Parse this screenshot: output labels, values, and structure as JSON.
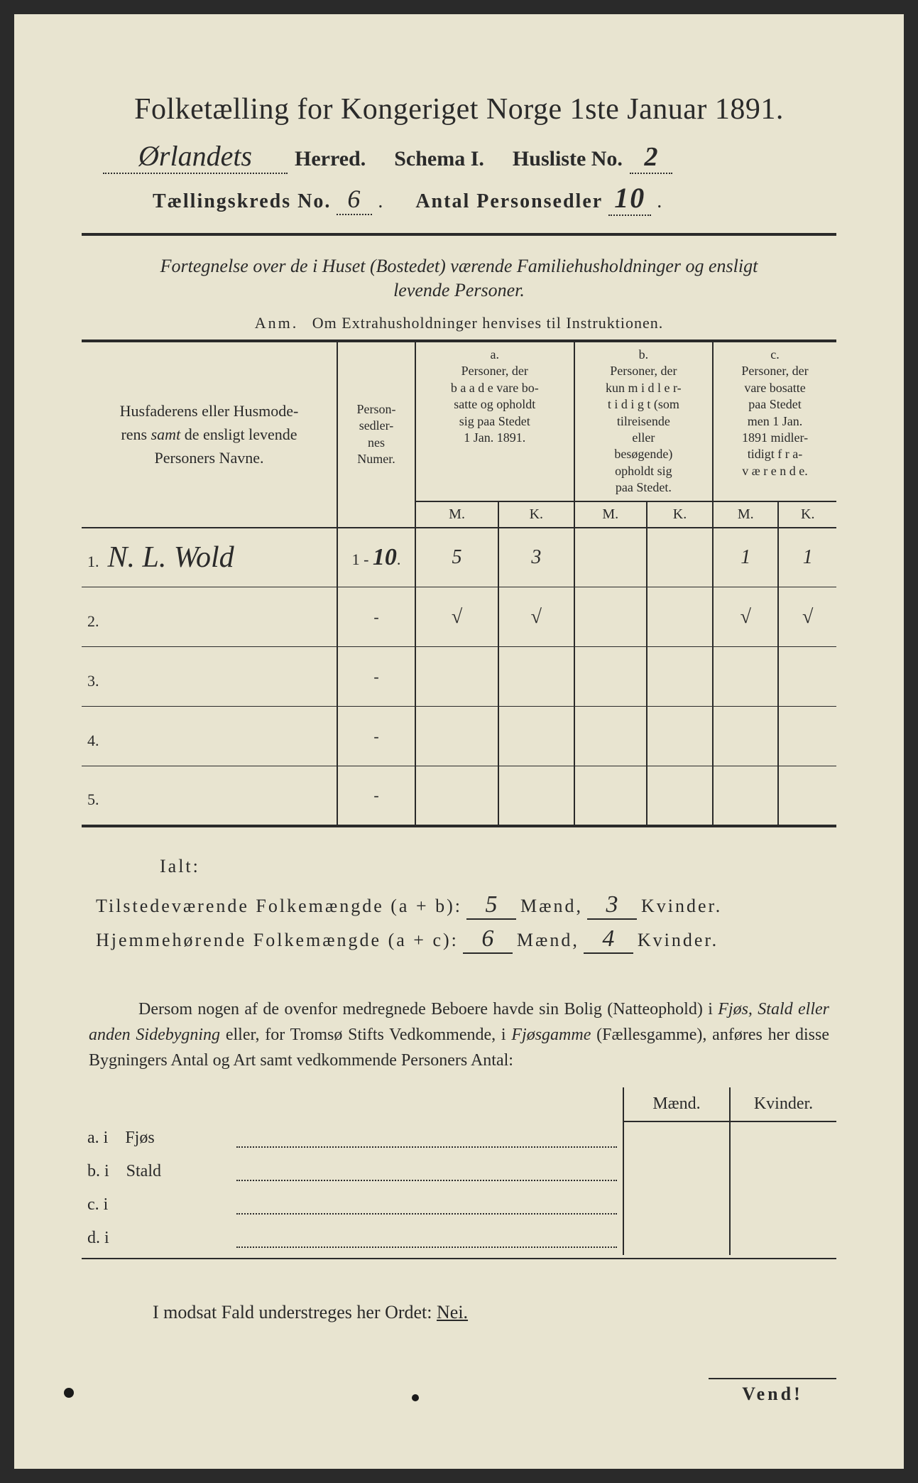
{
  "title": "Folketælling for Kongeriget Norge 1ste Januar 1891.",
  "header": {
    "herred_value": "Ørlandets",
    "herred_label": "Herred.",
    "schema_label": "Schema I.",
    "husliste_label": "Husliste No.",
    "husliste_value": "2",
    "kreds_label": "Tællingskreds No.",
    "kreds_value": "6",
    "personsedler_label": "Antal Personsedler",
    "personsedler_value": "10"
  },
  "subtitle1": "Fortegnelse over de i Huset (Bostedet) værende Familiehusholdninger og ensligt",
  "subtitle2": "levende Personer.",
  "anm_prefix": "Anm.",
  "anm_text": "Om Extrahusholdninger henvises til Instruktionen.",
  "table": {
    "col_name": "Husfaderens eller Husmoderens samt de ensligt levende Personers Navne.",
    "col_num": "Personsedlernes Numer.",
    "col_a_hdr": "a.",
    "col_a": "Personer, der baade vare bosatte og opholdt sig paa Stedet 1 Jan. 1891.",
    "col_b_hdr": "b.",
    "col_b": "Personer, der kun midlertidigt (som tilreisende eller besøgende) opholdt sig paa Stedet.",
    "col_c_hdr": "c.",
    "col_c": "Personer, der vare bosatte paa Stedet men 1 Jan. 1891 midlertidigt fraværende.",
    "M": "M.",
    "K": "K.",
    "rows": [
      {
        "n": "1.",
        "name": "N. L. Wold",
        "num": "1 - 10.",
        "aM": "5",
        "aK": "3",
        "bM": "",
        "bK": "",
        "cM": "1",
        "cK": "1"
      },
      {
        "n": "2.",
        "name": "",
        "num": "-",
        "aM": "√",
        "aK": "√",
        "bM": "",
        "bK": "",
        "cM": "√",
        "cK": "√"
      },
      {
        "n": "3.",
        "name": "",
        "num": "-",
        "aM": "",
        "aK": "",
        "bM": "",
        "bK": "",
        "cM": "",
        "cK": ""
      },
      {
        "n": "4.",
        "name": "",
        "num": "-",
        "aM": "",
        "aK": "",
        "bM": "",
        "bK": "",
        "cM": "",
        "cK": ""
      },
      {
        "n": "5.",
        "name": "",
        "num": "-",
        "aM": "",
        "aK": "",
        "bM": "",
        "bK": "",
        "cM": "",
        "cK": ""
      }
    ]
  },
  "ialt": "Ialt:",
  "totals": {
    "line1_label": "Tilstedeværende Folkemængde (a + b):",
    "line1_m": "5",
    "line1_k": "3",
    "line2_label": "Hjemmehørende Folkemængde (a + c):",
    "line2_m": "6",
    "line2_k": "4",
    "maend": "Mænd,",
    "kvinder": "Kvinder."
  },
  "paragraph": "Dersom nogen af de ovenfor medregnede Beboere havde sin Bolig (Natteophold) i Fjøs, Stald eller anden Sidebygning eller, for Tromsø Stifts Vedkommende, i Fjøsgamme (Fællesgamme), anføres her disse Bygningers Antal og Art samt vedkommende Personers Antal:",
  "dwelling": {
    "maend": "Mænd.",
    "kvinder": "Kvinder.",
    "rows": [
      {
        "l": "a.  i",
        "t": "Fjøs"
      },
      {
        "l": "b.  i",
        "t": "Stald"
      },
      {
        "l": "c.  i",
        "t": ""
      },
      {
        "l": "d.  i",
        "t": ""
      }
    ]
  },
  "nei_line": "I modsat Fald understreges her Ordet:",
  "nei": "Nei.",
  "vend": "Vend!",
  "colors": {
    "paper": "#e8e4d0",
    "ink": "#2a2a2a",
    "background": "#2a2a2a"
  }
}
